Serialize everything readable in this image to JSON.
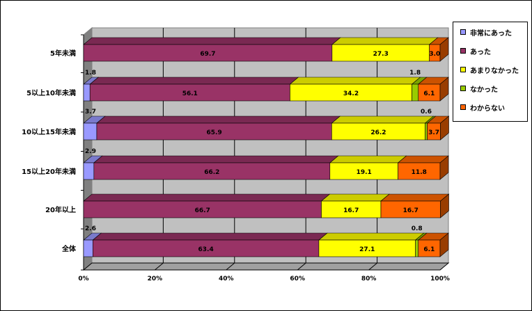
{
  "chart_data": {
    "type": "bar",
    "orientation": "horizontal",
    "stacked": true,
    "stacked_percent": true,
    "categories": [
      "5年未満",
      "5以上10年未満",
      "10以上15年未満",
      "15以上20年未満",
      "20年以上",
      "全体"
    ],
    "series": [
      {
        "name": "非常にあった",
        "color": "#9999ff",
        "values": [
          0,
          1.8,
          3.7,
          2.9,
          0,
          2.6
        ]
      },
      {
        "name": "あった",
        "color": "#993366",
        "values": [
          69.7,
          56.1,
          65.9,
          66.2,
          66.7,
          63.4
        ]
      },
      {
        "name": "あまりなかった",
        "color": "#ffff00",
        "values": [
          27.3,
          34.2,
          26.2,
          19.1,
          16.7,
          27.1
        ]
      },
      {
        "name": "なかった",
        "color": "#99cc00",
        "values": [
          0,
          1.8,
          0.6,
          0,
          0,
          0.8
        ]
      },
      {
        "name": "わからない",
        "color": "#ff6600",
        "values": [
          3.0,
          6.1,
          3.7,
          11.8,
          16.7,
          6.1
        ]
      }
    ],
    "labels": [
      [
        "",
        "69.7",
        "27.3",
        "",
        "3.0"
      ],
      [
        "1.8",
        "56.1",
        "34.2",
        "1.8",
        "6.1"
      ],
      [
        "3.7",
        "65.9",
        "26.2",
        "0.6",
        "3.7"
      ],
      [
        "2.9",
        "66.2",
        "19.1",
        "",
        "11.8"
      ],
      [
        "",
        "66.7",
        "16.7",
        "",
        "16.7"
      ],
      [
        "2.6",
        "63.4",
        "27.1",
        "0.8",
        "6.1"
      ]
    ],
    "xticks": [
      "0%",
      "20%",
      "40%",
      "60%",
      "80%",
      "100%"
    ],
    "xlim": [
      0,
      100
    ],
    "grid": true,
    "legend_position": "right",
    "wall_color": "#c0c0c0"
  }
}
